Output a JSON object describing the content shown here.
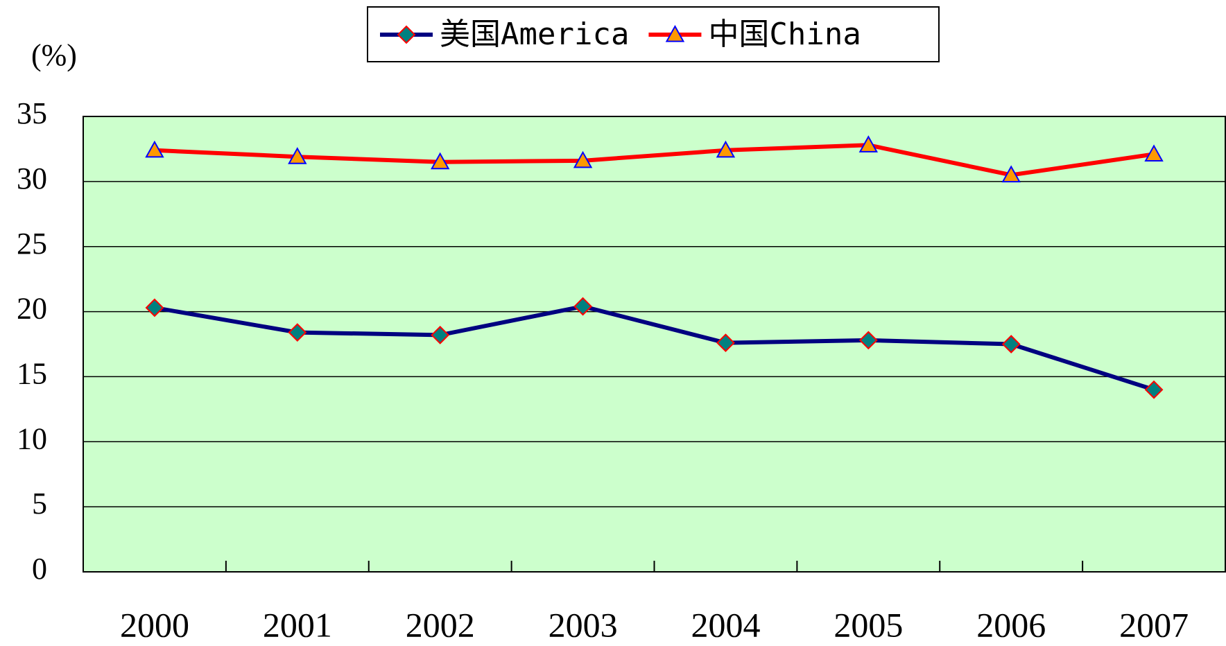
{
  "chart_data": {
    "type": "line",
    "y_label": "(%)",
    "categories": [
      "2000",
      "2001",
      "2002",
      "2003",
      "2004",
      "2005",
      "2006",
      "2007"
    ],
    "series": [
      {
        "name": "美国America",
        "color": "#000080",
        "marker": "diamond",
        "marker_fill": "#008080",
        "marker_edge": "#ff0000",
        "values": [
          20.3,
          18.4,
          18.2,
          20.4,
          17.6,
          17.8,
          17.5,
          14.0
        ]
      },
      {
        "name": "中国China",
        "color": "#ff0000",
        "marker": "triangle",
        "marker_fill": "#ff9900",
        "marker_edge": "#0000ff",
        "values": [
          32.4,
          31.9,
          31.5,
          31.6,
          32.4,
          32.8,
          30.5,
          32.1
        ]
      }
    ],
    "ylim": [
      0,
      35
    ],
    "yticks": [
      0,
      5,
      10,
      15,
      20,
      25,
      30,
      35
    ],
    "grid": true,
    "plot_background": "#ccffcc",
    "legend": "top"
  }
}
